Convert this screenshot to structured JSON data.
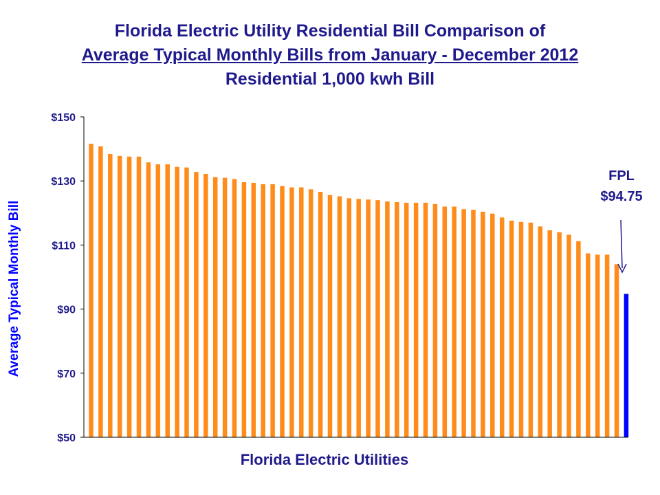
{
  "chart_data": {
    "type": "bar",
    "title_lines": [
      "Florida Electric Utility Residential Bill Comparison of",
      "Average Typical Monthly Bills from January - December 2012",
      "Residential 1,000 kwh Bill"
    ],
    "xlabel": "Florida Electric Utilities",
    "ylabel": "Average Typical Monthly Bill",
    "ylim": [
      50,
      150
    ],
    "yticks": [
      50,
      70,
      90,
      110,
      130,
      150
    ],
    "ytick_labels": [
      "$50",
      "$70",
      "$90",
      "$110",
      "$130",
      "$150"
    ],
    "grid": false,
    "values": [
      141.6,
      140.8,
      138.4,
      137.8,
      137.6,
      137.6,
      135.8,
      135.2,
      135.2,
      134.4,
      134.2,
      132.8,
      132.2,
      131.2,
      131.0,
      130.6,
      129.6,
      129.4,
      129.0,
      129.0,
      128.4,
      128.0,
      128.0,
      127.4,
      126.6,
      125.6,
      125.2,
      124.6,
      124.4,
      124.2,
      124.0,
      123.6,
      123.4,
      123.2,
      123.2,
      123.2,
      122.8,
      122.0,
      122.0,
      121.2,
      121.0,
      120.4,
      119.8,
      118.6,
      117.6,
      117.2,
      117.0,
      115.8,
      114.6,
      114.0,
      113.2,
      111.2,
      107.4,
      107.0,
      107.0,
      104.0,
      94.75
    ],
    "highlight": {
      "index": 56,
      "label": "FPL",
      "value_label": "$94.75"
    },
    "colors": {
      "bar": "#FF8C1A",
      "highlight_bar": "#0000FF",
      "text": "#1F1A8C",
      "axis": "#000000"
    }
  }
}
